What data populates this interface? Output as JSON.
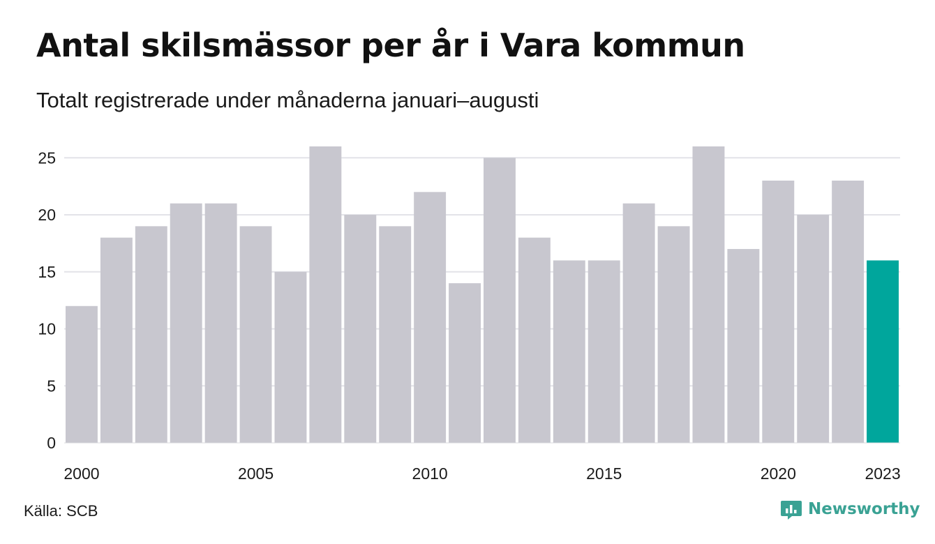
{
  "title": "Antal skilsmässor per år i Vara kommun",
  "subtitle": "Totalt registrerade under månaderna januari–augusti",
  "source": "Källa: SCB",
  "brand": "Newsworthy",
  "colors": {
    "bar": "#c8c7cf",
    "highlight": "#00a69c",
    "grid": "#e3e3e8",
    "brand": "#3aa294"
  },
  "chart_data": {
    "type": "bar",
    "categories": [
      "2000",
      "2001",
      "2002",
      "2003",
      "2004",
      "2005",
      "2006",
      "2007",
      "2008",
      "2009",
      "2010",
      "2011",
      "2012",
      "2013",
      "2014",
      "2015",
      "2016",
      "2017",
      "2018",
      "2019",
      "2020",
      "2021",
      "2022",
      "2023"
    ],
    "values": [
      12,
      18,
      19,
      21,
      21,
      19,
      15,
      26,
      20,
      19,
      22,
      14,
      25,
      18,
      16,
      16,
      21,
      19,
      26,
      17,
      23,
      20,
      23,
      16
    ],
    "highlight_category": "2023",
    "ylim": [
      0,
      26
    ],
    "yticks": [
      0,
      5,
      10,
      15,
      20,
      25
    ],
    "xtick_labels": [
      "2000",
      "2005",
      "2010",
      "2015",
      "2020",
      "2023"
    ],
    "grid": "horizontal"
  }
}
